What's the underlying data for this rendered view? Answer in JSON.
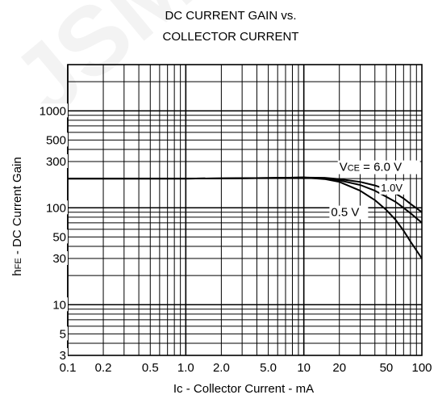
{
  "chart_data": {
    "type": "line",
    "title_line1": "DC CURRENT GAIN vs.",
    "title_line2": "COLLECTOR CURRENT",
    "xlabel": "Ic - Collector Current - mA",
    "ylabel": "hFE - DC Current Gain",
    "x_scale": "log",
    "y_scale": "log",
    "xlim": [
      0.1,
      100
    ],
    "ylim": [
      3,
      3000
    ],
    "grid": true,
    "x_tick_labels": [
      {
        "v": 0.1,
        "t": "0.1"
      },
      {
        "v": 0.2,
        "t": "0.2"
      },
      {
        "v": 0.5,
        "t": "0.5"
      },
      {
        "v": 1,
        "t": "1.0"
      },
      {
        "v": 2,
        "t": "2.0"
      },
      {
        "v": 5,
        "t": "5.0"
      },
      {
        "v": 10,
        "t": "10"
      },
      {
        "v": 20,
        "t": "20"
      },
      {
        "v": 50,
        "t": "50"
      },
      {
        "v": 100,
        "t": "100"
      }
    ],
    "y_tick_labels": [
      {
        "v": 3,
        "t": "3"
      },
      {
        "v": 5,
        "t": "5"
      },
      {
        "v": 10,
        "t": "10"
      },
      {
        "v": 30,
        "t": "30"
      },
      {
        "v": 50,
        "t": "50"
      },
      {
        "v": 100,
        "t": "100"
      },
      {
        "v": 300,
        "t": "300"
      },
      {
        "v": 500,
        "t": "500"
      },
      {
        "v": 1000,
        "t": "1000"
      }
    ],
    "series": [
      {
        "name": "VCE = 6.0 V",
        "label_parts": [
          "V",
          "CE",
          " = 6.0 V"
        ],
        "x": [
          0.1,
          1,
          5,
          10,
          15,
          20,
          30,
          40,
          50,
          60,
          70,
          80,
          100
        ],
        "y": [
          200,
          200,
          203,
          205,
          204,
          198,
          185,
          170,
          155,
          140,
          125,
          110,
          90
        ]
      },
      {
        "name": "1.0V",
        "label_parts": [
          "1.0V"
        ],
        "x": [
          0.1,
          1,
          5,
          10,
          15,
          20,
          30,
          40,
          50,
          60,
          70,
          80,
          100
        ],
        "y": [
          200,
          200,
          203,
          205,
          202,
          192,
          172,
          150,
          130,
          115,
          100,
          88,
          70
        ]
      },
      {
        "name": "0.5 V",
        "label_parts": [
          "0.5 V"
        ],
        "x": [
          0.1,
          1,
          5,
          10,
          15,
          20,
          30,
          40,
          50,
          60,
          70,
          80,
          100
        ],
        "y": [
          200,
          200,
          203,
          205,
          198,
          185,
          150,
          120,
          95,
          75,
          58,
          45,
          30
        ]
      }
    ],
    "watermark": "JSM"
  }
}
